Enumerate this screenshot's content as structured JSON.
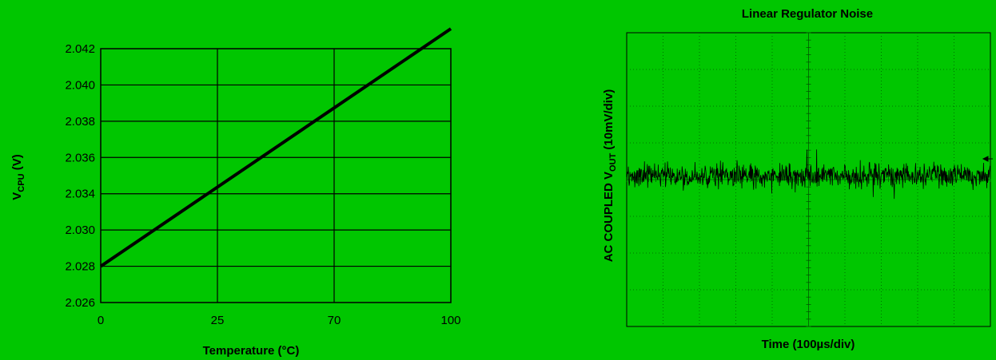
{
  "chart_data": [
    {
      "type": "line",
      "title": "",
      "xlabel": "Temperature (°C)",
      "ylabel_main": "V",
      "ylabel_sub": "CPU",
      "ylabel_suffix": " (V)",
      "x_tick_labels": [
        "0",
        "25",
        "70",
        "100"
      ],
      "y_tick_labels": [
        "2.026",
        "2.028",
        "2.030",
        "2.034",
        "2.036",
        "2.038",
        "2.040",
        "2.042"
      ],
      "series": [
        {
          "x": [
            "0",
            "100"
          ],
          "y_tick_position": [
            1.0,
            7.55
          ]
        }
      ],
      "grid": true,
      "line_color": "#000000"
    },
    {
      "type": "line",
      "title": "Linear Regulator Noise",
      "xlabel": "Time (100µs/div)",
      "ylabel_prefix": "AC COUPLED V",
      "ylabel_sub": "OUT",
      "ylabel_suffix": " (10mV/div)",
      "x_divisions": 10,
      "y_divisions": 8,
      "series": [
        {
          "description_level_div": 3.9,
          "peak_to_peak_div": 1.0
        }
      ],
      "grid": "dotted",
      "trace_color": "#000000"
    }
  ]
}
